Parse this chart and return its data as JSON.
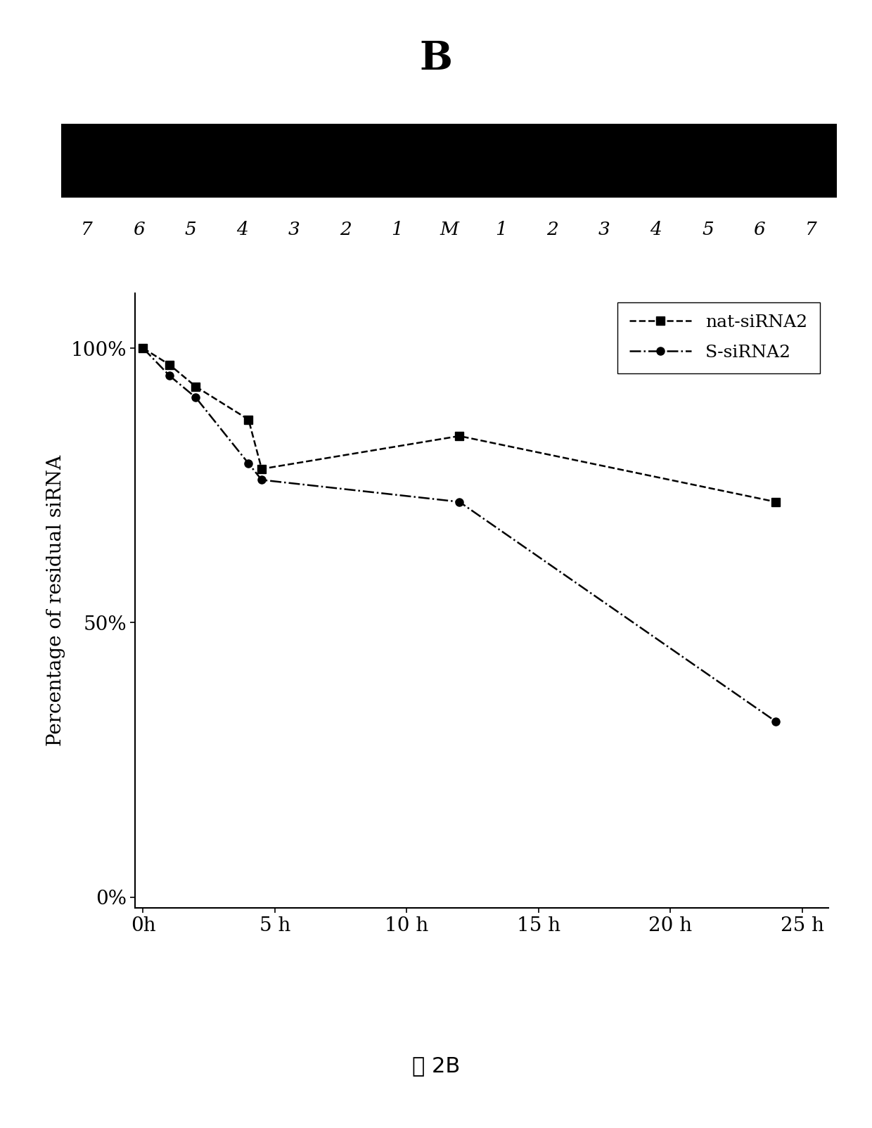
{
  "title": "B",
  "title_fontsize": 40,
  "gel_labels": [
    "7",
    "6",
    "5",
    "4",
    "3",
    "2",
    "1",
    "M",
    "1",
    "2",
    "3",
    "4",
    "5",
    "6",
    "7"
  ],
  "nat_x": [
    0,
    1,
    2,
    4,
    4.5,
    12,
    24
  ],
  "nat_y": [
    100,
    97,
    93,
    87,
    78,
    84,
    72
  ],
  "s_x": [
    0,
    1,
    2,
    4,
    4.5,
    12,
    24
  ],
  "s_y": [
    100,
    95,
    91,
    79,
    76,
    72,
    32
  ],
  "xlabel_ticks": [
    0,
    5,
    10,
    15,
    20,
    25
  ],
  "xlabel_labels": [
    "0h",
    "5 h",
    "10 h",
    "15 h",
    "20 h",
    "25 h"
  ],
  "ytick_vals": [
    0,
    50,
    100
  ],
  "ytick_labels": [
    "0%",
    "50%",
    "100%"
  ],
  "ylabel": "Percentage of residual siRNA",
  "legend_nat": "nat-siRNA2",
  "legend_s": "S-siRNA2",
  "line_color": "#000000",
  "bg_color": "#ffffff",
  "caption": "图 2B",
  "xlim": [
    -0.3,
    26
  ],
  "ylim": [
    -2,
    110
  ]
}
